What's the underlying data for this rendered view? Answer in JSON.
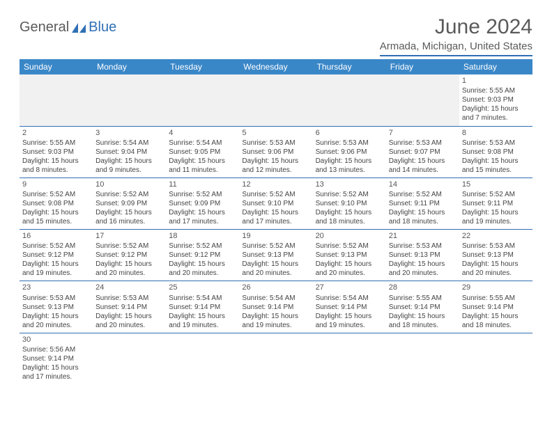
{
  "logo": {
    "part1": "General",
    "part2": "Blue"
  },
  "header": {
    "title": "June 2024",
    "subtitle": "Armada, Michigan, United States"
  },
  "colors": {
    "header_bg": "#3a87c8",
    "header_text": "#ffffff",
    "rule": "#2f6fb3",
    "text": "#444444",
    "title": "#5a5a5a"
  },
  "weekdays": [
    "Sunday",
    "Monday",
    "Tuesday",
    "Wednesday",
    "Thursday",
    "Friday",
    "Saturday"
  ],
  "weeks": [
    [
      null,
      null,
      null,
      null,
      null,
      null,
      {
        "d": "1",
        "sr": "Sunrise: 5:55 AM",
        "ss": "Sunset: 9:03 PM",
        "dl1": "Daylight: 15 hours",
        "dl2": "and 7 minutes."
      }
    ],
    [
      {
        "d": "2",
        "sr": "Sunrise: 5:55 AM",
        "ss": "Sunset: 9:03 PM",
        "dl1": "Daylight: 15 hours",
        "dl2": "and 8 minutes."
      },
      {
        "d": "3",
        "sr": "Sunrise: 5:54 AM",
        "ss": "Sunset: 9:04 PM",
        "dl1": "Daylight: 15 hours",
        "dl2": "and 9 minutes."
      },
      {
        "d": "4",
        "sr": "Sunrise: 5:54 AM",
        "ss": "Sunset: 9:05 PM",
        "dl1": "Daylight: 15 hours",
        "dl2": "and 11 minutes."
      },
      {
        "d": "5",
        "sr": "Sunrise: 5:53 AM",
        "ss": "Sunset: 9:06 PM",
        "dl1": "Daylight: 15 hours",
        "dl2": "and 12 minutes."
      },
      {
        "d": "6",
        "sr": "Sunrise: 5:53 AM",
        "ss": "Sunset: 9:06 PM",
        "dl1": "Daylight: 15 hours",
        "dl2": "and 13 minutes."
      },
      {
        "d": "7",
        "sr": "Sunrise: 5:53 AM",
        "ss": "Sunset: 9:07 PM",
        "dl1": "Daylight: 15 hours",
        "dl2": "and 14 minutes."
      },
      {
        "d": "8",
        "sr": "Sunrise: 5:53 AM",
        "ss": "Sunset: 9:08 PM",
        "dl1": "Daylight: 15 hours",
        "dl2": "and 15 minutes."
      }
    ],
    [
      {
        "d": "9",
        "sr": "Sunrise: 5:52 AM",
        "ss": "Sunset: 9:08 PM",
        "dl1": "Daylight: 15 hours",
        "dl2": "and 15 minutes."
      },
      {
        "d": "10",
        "sr": "Sunrise: 5:52 AM",
        "ss": "Sunset: 9:09 PM",
        "dl1": "Daylight: 15 hours",
        "dl2": "and 16 minutes."
      },
      {
        "d": "11",
        "sr": "Sunrise: 5:52 AM",
        "ss": "Sunset: 9:09 PM",
        "dl1": "Daylight: 15 hours",
        "dl2": "and 17 minutes."
      },
      {
        "d": "12",
        "sr": "Sunrise: 5:52 AM",
        "ss": "Sunset: 9:10 PM",
        "dl1": "Daylight: 15 hours",
        "dl2": "and 17 minutes."
      },
      {
        "d": "13",
        "sr": "Sunrise: 5:52 AM",
        "ss": "Sunset: 9:10 PM",
        "dl1": "Daylight: 15 hours",
        "dl2": "and 18 minutes."
      },
      {
        "d": "14",
        "sr": "Sunrise: 5:52 AM",
        "ss": "Sunset: 9:11 PM",
        "dl1": "Daylight: 15 hours",
        "dl2": "and 18 minutes."
      },
      {
        "d": "15",
        "sr": "Sunrise: 5:52 AM",
        "ss": "Sunset: 9:11 PM",
        "dl1": "Daylight: 15 hours",
        "dl2": "and 19 minutes."
      }
    ],
    [
      {
        "d": "16",
        "sr": "Sunrise: 5:52 AM",
        "ss": "Sunset: 9:12 PM",
        "dl1": "Daylight: 15 hours",
        "dl2": "and 19 minutes."
      },
      {
        "d": "17",
        "sr": "Sunrise: 5:52 AM",
        "ss": "Sunset: 9:12 PM",
        "dl1": "Daylight: 15 hours",
        "dl2": "and 20 minutes."
      },
      {
        "d": "18",
        "sr": "Sunrise: 5:52 AM",
        "ss": "Sunset: 9:12 PM",
        "dl1": "Daylight: 15 hours",
        "dl2": "and 20 minutes."
      },
      {
        "d": "19",
        "sr": "Sunrise: 5:52 AM",
        "ss": "Sunset: 9:13 PM",
        "dl1": "Daylight: 15 hours",
        "dl2": "and 20 minutes."
      },
      {
        "d": "20",
        "sr": "Sunrise: 5:52 AM",
        "ss": "Sunset: 9:13 PM",
        "dl1": "Daylight: 15 hours",
        "dl2": "and 20 minutes."
      },
      {
        "d": "21",
        "sr": "Sunrise: 5:53 AM",
        "ss": "Sunset: 9:13 PM",
        "dl1": "Daylight: 15 hours",
        "dl2": "and 20 minutes."
      },
      {
        "d": "22",
        "sr": "Sunrise: 5:53 AM",
        "ss": "Sunset: 9:13 PM",
        "dl1": "Daylight: 15 hours",
        "dl2": "and 20 minutes."
      }
    ],
    [
      {
        "d": "23",
        "sr": "Sunrise: 5:53 AM",
        "ss": "Sunset: 9:13 PM",
        "dl1": "Daylight: 15 hours",
        "dl2": "and 20 minutes."
      },
      {
        "d": "24",
        "sr": "Sunrise: 5:53 AM",
        "ss": "Sunset: 9:14 PM",
        "dl1": "Daylight: 15 hours",
        "dl2": "and 20 minutes."
      },
      {
        "d": "25",
        "sr": "Sunrise: 5:54 AM",
        "ss": "Sunset: 9:14 PM",
        "dl1": "Daylight: 15 hours",
        "dl2": "and 19 minutes."
      },
      {
        "d": "26",
        "sr": "Sunrise: 5:54 AM",
        "ss": "Sunset: 9:14 PM",
        "dl1": "Daylight: 15 hours",
        "dl2": "and 19 minutes."
      },
      {
        "d": "27",
        "sr": "Sunrise: 5:54 AM",
        "ss": "Sunset: 9:14 PM",
        "dl1": "Daylight: 15 hours",
        "dl2": "and 19 minutes."
      },
      {
        "d": "28",
        "sr": "Sunrise: 5:55 AM",
        "ss": "Sunset: 9:14 PM",
        "dl1": "Daylight: 15 hours",
        "dl2": "and 18 minutes."
      },
      {
        "d": "29",
        "sr": "Sunrise: 5:55 AM",
        "ss": "Sunset: 9:14 PM",
        "dl1": "Daylight: 15 hours",
        "dl2": "and 18 minutes."
      }
    ],
    [
      {
        "d": "30",
        "sr": "Sunrise: 5:56 AM",
        "ss": "Sunset: 9:14 PM",
        "dl1": "Daylight: 15 hours",
        "dl2": "and 17 minutes."
      },
      null,
      null,
      null,
      null,
      null,
      null
    ]
  ]
}
